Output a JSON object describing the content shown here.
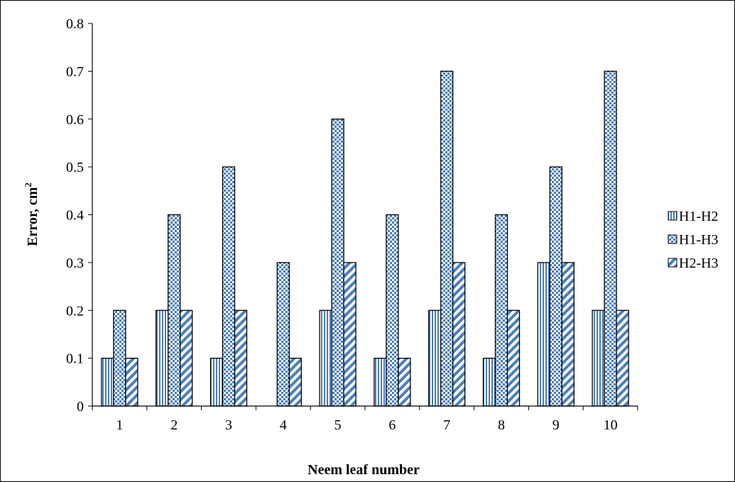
{
  "chart_data": {
    "type": "bar",
    "categories": [
      "1",
      "2",
      "3",
      "4",
      "5",
      "6",
      "7",
      "8",
      "9",
      "10"
    ],
    "series": [
      {
        "name": "H1-H2",
        "values": [
          0.1,
          0.2,
          0.1,
          0.0,
          0.2,
          0.1,
          0.2,
          0.1,
          0.3,
          0.2
        ],
        "pattern": "vertical-stripes",
        "color": "#4a7ebb"
      },
      {
        "name": "H1-H3",
        "values": [
          0.2,
          0.4,
          0.5,
          0.3,
          0.6,
          0.4,
          0.7,
          0.4,
          0.5,
          0.7
        ],
        "pattern": "checker",
        "color": "#4a7ebb"
      },
      {
        "name": "H2-H3",
        "values": [
          0.1,
          0.2,
          0.2,
          0.1,
          0.3,
          0.1,
          0.3,
          0.2,
          0.3,
          0.2
        ],
        "pattern": "diagonal-stripes",
        "color": "#4a7ebb"
      }
    ],
    "title": "",
    "xlabel": "Neem leaf number",
    "ylabel": "Error, cm",
    "ylabel_superscript": "2",
    "ylim": [
      0,
      0.8
    ],
    "yticks": [
      "0",
      "0.1",
      "0.2",
      "0.3",
      "0.4",
      "0.5",
      "0.6",
      "0.7",
      "0.8"
    ],
    "grid": false,
    "legend_position": "right"
  }
}
